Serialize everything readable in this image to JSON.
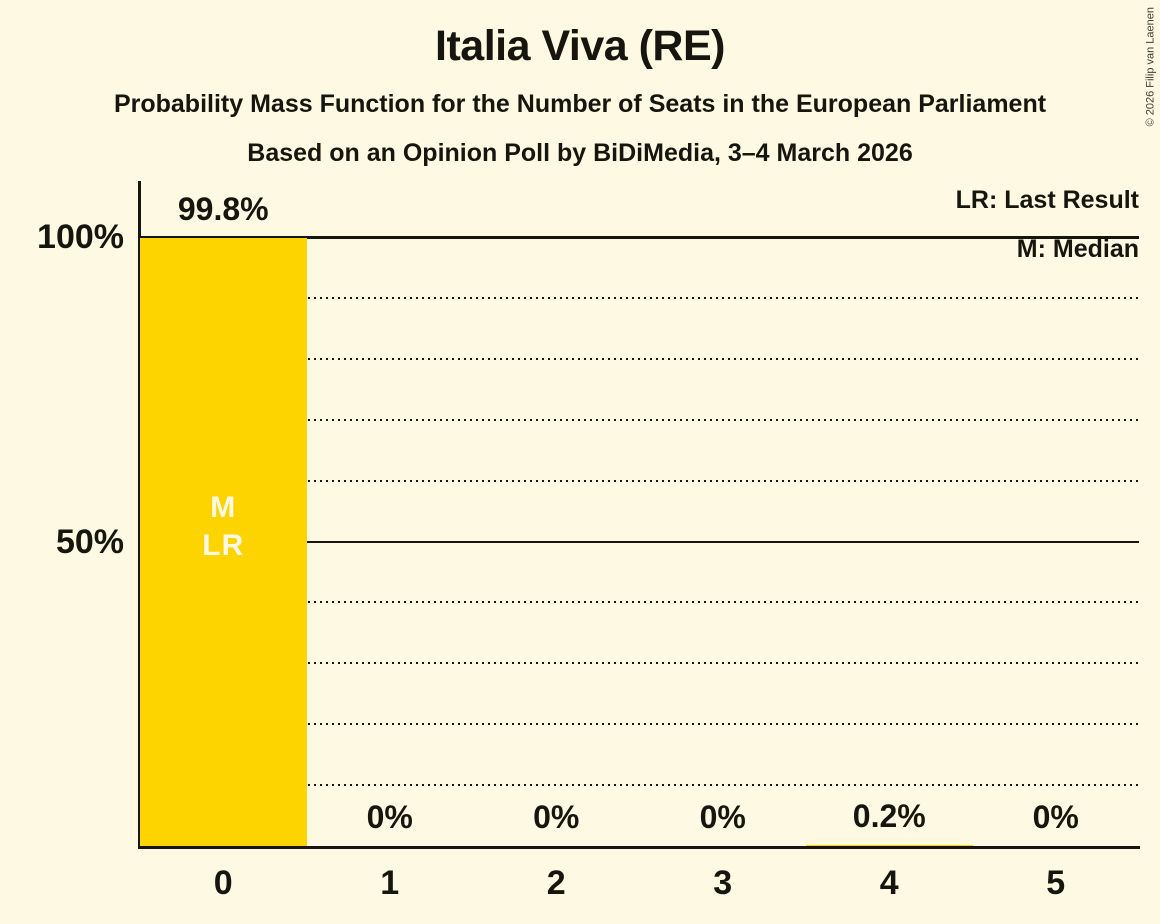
{
  "header": {
    "title": "Italia Viva (RE)",
    "subtitle": "Probability Mass Function for the Number of Seats in the European Parliament",
    "subsubtitle": "Based on an Opinion Poll by BiDiMedia, 3–4 March 2026"
  },
  "legend": {
    "last_result": "LR: Last Result",
    "median": "M: Median"
  },
  "copyright": "© 2026 Filip van Laenen",
  "colors": {
    "background": "#FDF9E3",
    "bar": "#FDD400",
    "text": "#16160F",
    "annotation_text": "#FDF9E3"
  },
  "chart_data": {
    "type": "bar",
    "title": "Italia Viva (RE)",
    "categories": [
      "0",
      "1",
      "2",
      "3",
      "4",
      "5"
    ],
    "values": [
      99.8,
      0,
      0,
      0,
      0.2,
      0
    ],
    "value_labels": [
      "99.8%",
      "0%",
      "0%",
      "0%",
      "0.2%",
      "0%"
    ],
    "bar_annotations": {
      "0": [
        "M",
        "LR"
      ]
    },
    "median_category": "0",
    "last_result_category": "0",
    "xlabel": "",
    "ylabel": "",
    "ylim": [
      0,
      100
    ],
    "y_ticks": [
      {
        "value": 100,
        "label": "100%"
      },
      {
        "value": 50,
        "label": "50%"
      }
    ],
    "gridlines": {
      "dotted_values": [
        10,
        20,
        30,
        40,
        60,
        70,
        80,
        90
      ],
      "solid_values": [
        50,
        100
      ]
    },
    "legend_position": "top-right",
    "grid": true
  }
}
